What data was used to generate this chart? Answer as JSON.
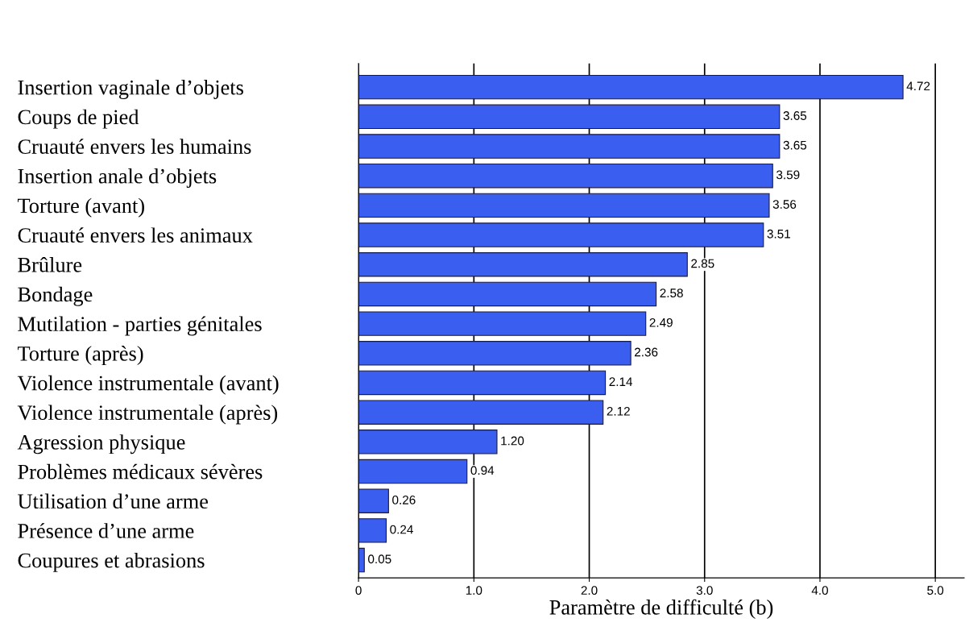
{
  "chart_data": {
    "type": "bar",
    "orientation": "horizontal",
    "xlabel": "Paramètre de difficulté (b)",
    "categories": [
      "Insertion vaginale d’objets",
      "Coups de pied",
      "Cruauté envers les humains",
      "Insertion anale d’objets",
      "Torture (avant)",
      "Cruauté envers les animaux",
      "Brûlure",
      "Bondage",
      "Mutilation - parties génitales",
      "Torture (après)",
      "Violence instrumentale (avant)",
      "Violence instrumentale (après)",
      "Agression physique",
      "Problèmes médicaux sévères",
      "Utilisation d’une arme",
      "Présence d’une arme",
      "Coupures et abrasions"
    ],
    "values": [
      4.72,
      3.65,
      3.65,
      3.59,
      3.56,
      3.51,
      2.85,
      2.58,
      2.49,
      2.36,
      2.14,
      2.12,
      1.2,
      0.94,
      0.26,
      0.24,
      0.05
    ],
    "value_labels": [
      "4.72",
      "3.65",
      "3.65",
      "3.59",
      "3.56",
      "3.51",
      "2.85",
      "2.58",
      "2.49",
      "2.36",
      "2.14",
      "2.12",
      "1.20",
      "0.94",
      "0.26",
      "0.24",
      "0.05"
    ],
    "color": "#3a5ef0",
    "xlim": [
      0,
      5.25
    ],
    "xticks": [
      0,
      {
        "value": 1,
        "label": "1.0"
      },
      {
        "value": 2,
        "label": "2.0"
      },
      {
        "value": 3,
        "label": "3.0"
      },
      {
        "value": 4,
        "label": "4.0"
      },
      {
        "value": 5,
        "label": "5.0"
      }
    ],
    "grid": "x",
    "legend": false
  }
}
